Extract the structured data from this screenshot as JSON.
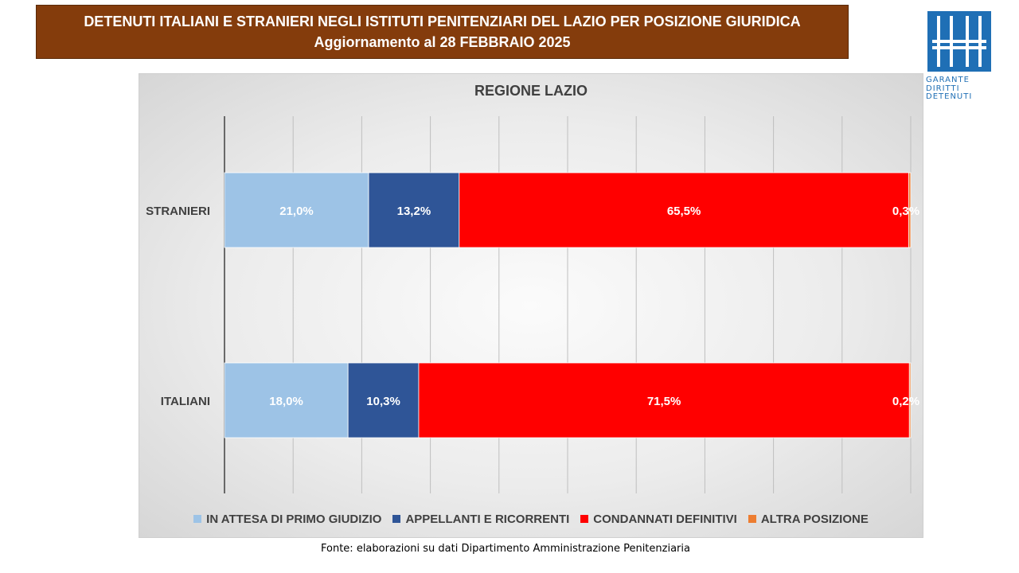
{
  "header": {
    "title_line1": "DETENUTI ITALIANI E STRANIERI NEGLI ISTITUTI PENITENZIARI DEL LAZIO PER POSIZIONE GIURIDICA",
    "title_line2": "Aggiornamento al 28 FEBBRAIO 2025"
  },
  "logo": {
    "line1": "GARANTE",
    "line2": "DIRITTI",
    "line3": "DETENUTI",
    "color": "#1f6fb5"
  },
  "chart_data": {
    "type": "bar",
    "orientation": "horizontal",
    "stacked": true,
    "title": "REGIONE LAZIO",
    "categories": [
      "STRANIERI",
      "ITALIANI"
    ],
    "xlim": [
      0,
      100
    ],
    "grid": true,
    "legend_position": "bottom",
    "series": [
      {
        "name": "IN ATTESA DI PRIMO GIUDIZIO",
        "color": "#9dc3e6",
        "values": [
          21.0,
          18.0
        ],
        "labels": [
          "21,0%",
          "18,0%"
        ]
      },
      {
        "name": "APPELLANTI E RICORRENTI",
        "color": "#2f5597",
        "values": [
          13.2,
          10.3
        ],
        "labels": [
          "13,2%",
          "10,3%"
        ]
      },
      {
        "name": "CONDANNATI DEFINITIVI",
        "color": "#ff0000",
        "values": [
          65.5,
          71.5
        ],
        "labels": [
          "65,5%",
          "71,5%"
        ]
      },
      {
        "name": "ALTRA POSIZIONE",
        "color": "#ed7d31",
        "values": [
          0.3,
          0.2
        ],
        "labels": [
          "0,3%",
          "0,2%"
        ]
      }
    ]
  },
  "source": "Fonte: elaborazioni su dati Dipartimento Amministrazione Penitenziaria"
}
